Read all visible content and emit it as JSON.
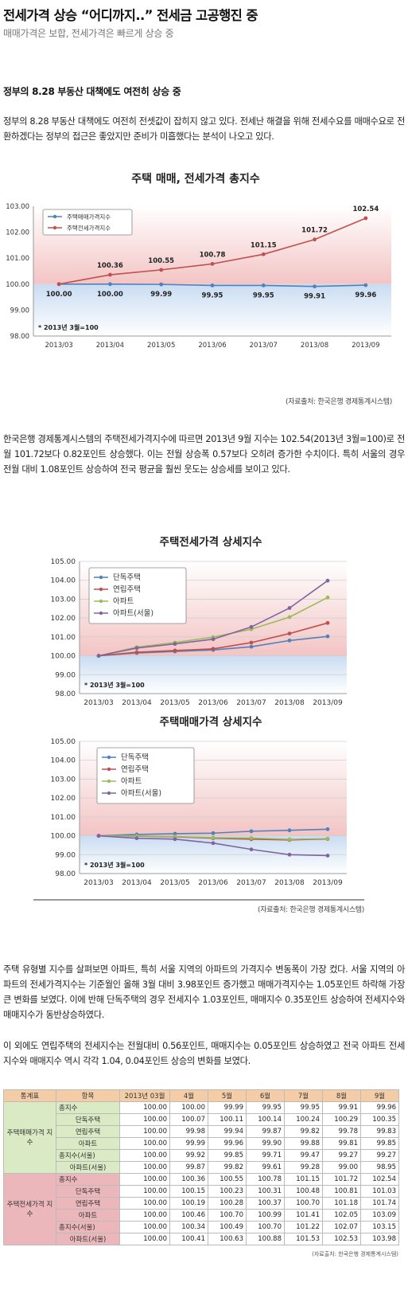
{
  "article": {
    "headline": "전세가격 상승 “어디까지..” 전세금 고공행진 중",
    "subheadline": "매매가격은 보합, 전세가격은 빠르게 상승 중",
    "section_title": "정부의 8.28 부동산 대책에도 여전히 상승 중",
    "paragraphs": [
      "정부의 8.28 부동산 대책에도 여전히 전셋값이 잡히지 않고 있다. 전세난 해결을 위해 전세수요를 매매수요로 전환하겠다는 정부의 접근은 좋았지만 준비가 미흡했다는 분석이 나오고 있다.",
      "한국은행 경제통계시스템의 주택전세가격지수에 따르면 2013년 9월 지수는 102.54(2013년 3월=100)로 전월 101.72보다 0.82포인트 상승했다. 이는 전월 상승폭 0.57보다 오히려 증가한 수치이다. 특히 서울의 경우 전월 대비 1.08포인트 상승하여 전국 평균을 훨씬 웃도는 상승세를 보이고 있다.",
      "주택 유형별 지수를 살펴보면 아파트, 특히 서울 지역의 아파트의 가격지수 변동폭이 가장 컸다. 서울 지역의 아파트의 전세가격지수는 기준월인 올해 3월 대비 3.98포인트 증가했고 매매가격지수는 1.05포인트 하락해 가장 큰 변화를 보였다. 이에 반해 단독주택의 경우 전세지수 1.03포인트, 매매지수 0.35포인트 상승하여 전세지수와 매매지수가 동반상승하였다.",
      "이 외에도 연립주택의 전세지수는 전월대비 0.56포인트, 매매지수는 0.05포인트 상승하였고 전국 아파트 전세지수와 매매지수 역시 각각 1.04, 0.04포인트 상승의 변화를 보였다."
    ]
  },
  "sources": {
    "chart1": "(자료출처: 한국은행 경제통계시스템)",
    "chart23": "(자료출처: 한국은행 경제통계시스템)",
    "table": "(자료출처: 한국은행 경제통계시스템)"
  },
  "chart_data": [
    {
      "type": "line",
      "title": "주택 매매, 전세가격 총지수",
      "x": [
        "2013/03",
        "2013/04",
        "2013/05",
        "2013/06",
        "2013/07",
        "2013/08",
        "2013/09"
      ],
      "ylim": [
        98.0,
        103.0
      ],
      "yticks": [
        "98.00",
        "99.00",
        "100.00",
        "101.00",
        "102.00",
        "103.00"
      ],
      "series": [
        {
          "name": "주택매매가격지수",
          "color": "#4f81bd",
          "values": [
            100.0,
            100.0,
            99.99,
            99.95,
            99.95,
            99.91,
            99.96
          ],
          "labels": [
            "100.00",
            "100.00",
            "99.99",
            "99.95",
            "99.95",
            "99.91",
            "99.96"
          ]
        },
        {
          "name": "주택전세가격지수",
          "color": "#c0504d",
          "values": [
            100.0,
            100.36,
            100.55,
            100.78,
            101.15,
            101.72,
            102.54
          ],
          "labels": [
            "",
            "100.36",
            "100.55",
            "100.78",
            "101.15",
            "101.72",
            "102.54"
          ]
        }
      ],
      "note": "* 2013년 3월=100",
      "legend": "top-left",
      "grid": false
    },
    {
      "type": "line",
      "title": "주택전세가격 상세지수",
      "x": [
        "2013/03",
        "2013/04",
        "2013/05",
        "2013/06",
        "2013/07",
        "2013/08",
        "2013/09"
      ],
      "ylim": [
        98.0,
        105.0
      ],
      "yticks": [
        "98.00",
        "99.00",
        "100.00",
        "101.00",
        "102.00",
        "103.00",
        "104.00",
        "105.00"
      ],
      "series": [
        {
          "name": "단독주택",
          "color": "#4f81bd",
          "values": [
            100.0,
            100.15,
            100.23,
            100.31,
            100.48,
            100.81,
            101.03
          ]
        },
        {
          "name": "연립주택",
          "color": "#c0504d",
          "values": [
            100.0,
            100.19,
            100.28,
            100.37,
            100.7,
            101.18,
            101.74
          ]
        },
        {
          "name": "아파트",
          "color": "#9bbb59",
          "values": [
            100.0,
            100.46,
            100.7,
            100.99,
            101.41,
            102.05,
            103.09
          ]
        },
        {
          "name": "아파트(서울)",
          "color": "#8064a2",
          "values": [
            100.0,
            100.41,
            100.63,
            100.88,
            101.53,
            102.53,
            103.98
          ]
        }
      ],
      "note": "* 2013년 3월=100",
      "legend": "top-left",
      "grid": true
    },
    {
      "type": "line",
      "title": "주택매매가격 상세지수",
      "x": [
        "2013/03",
        "2013/04",
        "2013/05",
        "2013/06",
        "2013/07",
        "2013/08",
        "2013/09"
      ],
      "ylim": [
        98.0,
        105.0
      ],
      "yticks": [
        "98.00",
        "99.00",
        "100.00",
        "101.00",
        "102.00",
        "103.00",
        "104.00",
        "105.00"
      ],
      "series": [
        {
          "name": "단독주택",
          "color": "#4f81bd",
          "values": [
            100.0,
            100.07,
            100.11,
            100.14,
            100.24,
            100.29,
            100.35
          ]
        },
        {
          "name": "연립주택",
          "color": "#c0504d",
          "values": [
            100.0,
            99.98,
            99.94,
            99.87,
            99.82,
            99.78,
            99.83
          ]
        },
        {
          "name": "아파트",
          "color": "#9bbb59",
          "values": [
            100.0,
            99.99,
            99.96,
            99.9,
            99.88,
            99.81,
            99.85
          ]
        },
        {
          "name": "아파트(서울)",
          "color": "#8064a2",
          "values": [
            100.0,
            99.87,
            99.82,
            99.61,
            99.28,
            99.0,
            98.95
          ]
        }
      ],
      "note": "* 2013년 3월=100",
      "legend": "top-left",
      "grid": true
    }
  ],
  "table": {
    "headers": [
      "통계표",
      "항목",
      "2013년 03월",
      "4월",
      "5월",
      "6월",
      "7월",
      "8월",
      "9월"
    ],
    "groups": [
      {
        "name": "주택매매가격 지수",
        "rows": [
          {
            "item": "총지수",
            "total": true,
            "values": [
              "100.00",
              "100.00",
              "99.99",
              "99.95",
              "99.95",
              "99.91",
              "99.96"
            ]
          },
          {
            "item": "단독주택",
            "total": false,
            "values": [
              "100.00",
              "100.07",
              "100.11",
              "100.14",
              "100.24",
              "100.29",
              "100.35"
            ]
          },
          {
            "item": "연립주택",
            "total": false,
            "values": [
              "100.00",
              "99.98",
              "99.94",
              "99.87",
              "99.82",
              "99.78",
              "99.83"
            ]
          },
          {
            "item": "아파트",
            "total": false,
            "values": [
              "100.00",
              "99.99",
              "99.96",
              "99.90",
              "99.88",
              "99.81",
              "99.85"
            ]
          },
          {
            "item": "총지수(서울)",
            "total": true,
            "values": [
              "100.00",
              "99.92",
              "99.85",
              "99.71",
              "99.47",
              "99.27",
              "99.27"
            ]
          },
          {
            "item": "아파트(서울)",
            "total": false,
            "values": [
              "100.00",
              "99.87",
              "99.82",
              "99.61",
              "99.28",
              "99.00",
              "98.95"
            ]
          }
        ]
      },
      {
        "name": "주택전세가격 지수",
        "rows": [
          {
            "item": "총지수",
            "total": true,
            "values": [
              "100.00",
              "100.36",
              "100.55",
              "100.78",
              "101.15",
              "101.72",
              "102.54"
            ]
          },
          {
            "item": "단독주택",
            "total": false,
            "values": [
              "100.00",
              "100.15",
              "100.23",
              "100.31",
              "100.48",
              "100.81",
              "101.03"
            ]
          },
          {
            "item": "연립주택",
            "total": false,
            "values": [
              "100.00",
              "100.19",
              "100.28",
              "100.37",
              "100.70",
              "101.18",
              "101.74"
            ]
          },
          {
            "item": "아파트",
            "total": false,
            "values": [
              "100.00",
              "100.46",
              "100.70",
              "100.99",
              "101.41",
              "102.05",
              "103.09"
            ]
          },
          {
            "item": "총지수(서울)",
            "total": true,
            "values": [
              "100.00",
              "100.34",
              "100.49",
              "100.70",
              "101.22",
              "102.07",
              "103.15"
            ]
          },
          {
            "item": "아파트(서울)",
            "total": false,
            "values": [
              "100.00",
              "100.41",
              "100.63",
              "100.88",
              "101.53",
              "102.53",
              "103.98"
            ]
          }
        ]
      }
    ]
  }
}
